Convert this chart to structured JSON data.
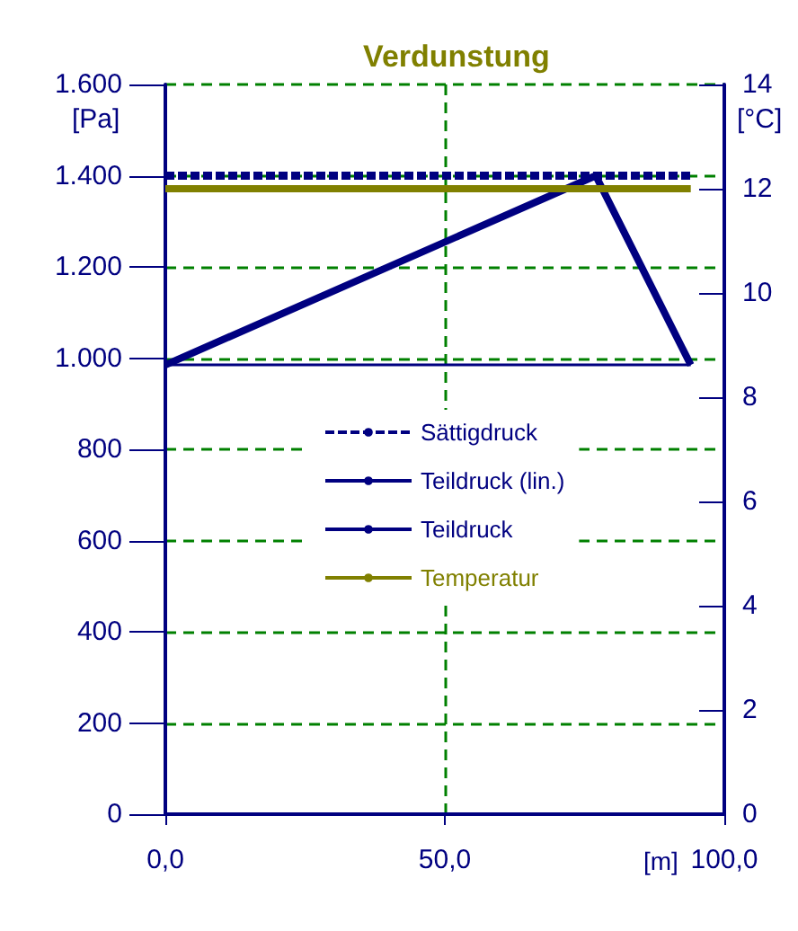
{
  "chart_data": {
    "type": "line",
    "title": "Verdunstung",
    "xlabel": "[m]",
    "ylabel": "[Pa]",
    "y2label": "[°C]",
    "xlim": [
      0,
      100
    ],
    "xticks": [
      {
        "value": 0,
        "label": "0,0"
      },
      {
        "value": 50,
        "label": "50,0"
      },
      {
        "value": 100,
        "label": "100,0"
      }
    ],
    "ylim": [
      0,
      1600
    ],
    "yticks": [
      0,
      200,
      400,
      600,
      800,
      {
        "value": 1000,
        "label": "1.000"
      },
      {
        "value": 1200,
        "label": "1.200"
      },
      {
        "value": 1400,
        "label": "1.400"
      },
      {
        "value": 1600,
        "label": "1.600"
      }
    ],
    "y2lim": [
      0,
      14
    ],
    "y2ticks": [
      0,
      2,
      4,
      6,
      8,
      10,
      12,
      14
    ],
    "grid": true,
    "legend": "center",
    "marker": "none",
    "series": [
      {
        "name": "Sättigdruck",
        "color": "#000080",
        "x": [
          0,
          94
        ],
        "values": [
          1400,
          1400
        ],
        "line_style": "dashed"
      },
      {
        "name": "Teildruck (lin.)",
        "color": "#000080",
        "x": [
          0,
          94
        ],
        "values": [
          985,
          985
        ]
      },
      {
        "name": "Teildruck",
        "color": "#000080",
        "x": [
          0,
          77,
          94
        ],
        "values": [
          985,
          1400,
          985
        ]
      },
      {
        "name": "Temperatur",
        "color": "#808000",
        "x": [
          0,
          94
        ],
        "values": [
          12,
          12
        ],
        "axis": "y2"
      }
    ]
  }
}
